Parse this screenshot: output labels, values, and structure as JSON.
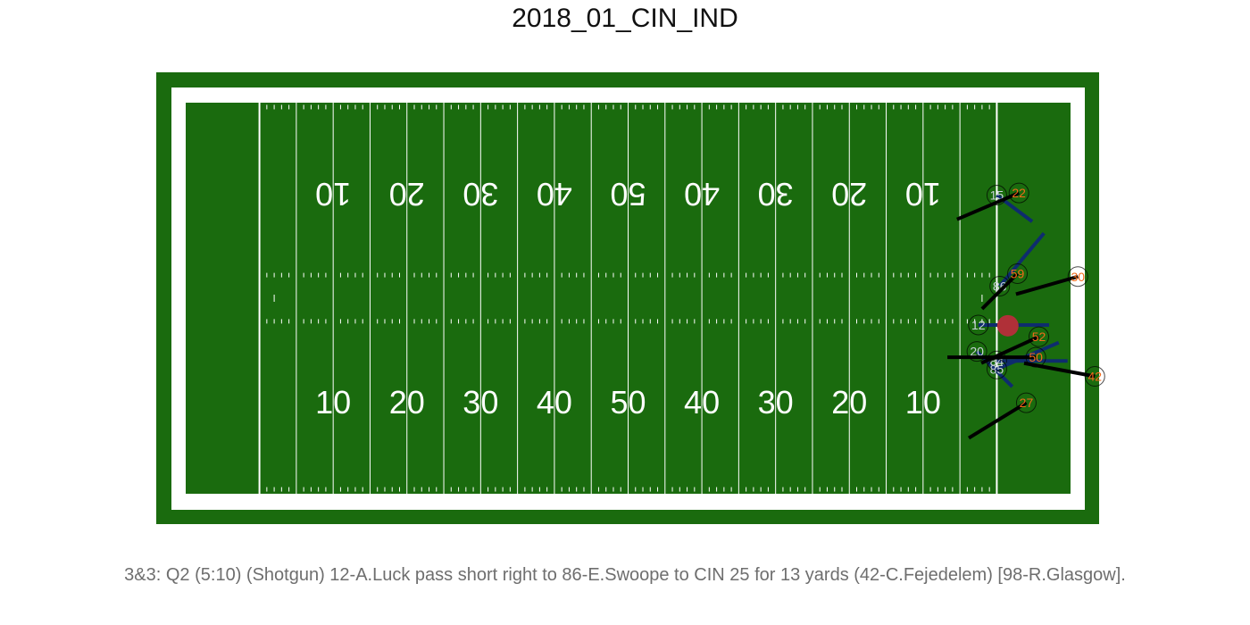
{
  "title": "2018_01_CIN_IND",
  "caption": "3&3: Q2 (5:10) (Shotgun) 12-A.Luck pass short right to 86-E.Swoope to CIN 25 for 13 yards (42-C.Fejedelem) [98-R.Glasgow].",
  "colors": {
    "field": "#1a6b0e",
    "lines": "#ffffff",
    "football": "#b03038",
    "offense_arrow": "#0e2c6e",
    "offense_text": "#c8d2d8",
    "defense_arrow": "#000000",
    "defense_text": "#f26a1a",
    "player_ring": "#000000"
  },
  "yard_numbers": {
    "top": [
      "10",
      "20",
      "30",
      "40",
      "50",
      "40",
      "30",
      "20",
      "10"
    ],
    "bottom": [
      "10",
      "20",
      "30",
      "40",
      "50",
      "40",
      "30",
      "20",
      "10"
    ]
  },
  "offense": {
    "team": "IND",
    "players": [
      {
        "jersey": "15",
        "yardline": 110.0,
        "y": 40.7,
        "dx": 0.8,
        "dy": -0.6
      },
      {
        "jersey": "86",
        "yardline": 110.4,
        "y": 28.3,
        "dx": 1.0,
        "dy": 1.2
      },
      {
        "jersey": "12",
        "yardline": 107.5,
        "y": 23.0,
        "dx": 1.6,
        "dy": 0.0
      },
      {
        "jersey": "20",
        "yardline": 107.3,
        "y": 19.4,
        "dx": 0.8,
        "dy": -0.8
      },
      {
        "jersey": "84",
        "yardline": 110.0,
        "y": 18.1,
        "dx": 1.6,
        "dy": 0.0
      },
      {
        "jersey": "85",
        "yardline": 110.0,
        "y": 17.0,
        "dx": 1.4,
        "dy": 0.6
      }
    ]
  },
  "defense": {
    "team": "CIN",
    "players": [
      {
        "jersey": "22",
        "yardline": 113.0,
        "y": 41.0,
        "dx": -1.4,
        "dy": -0.6
      },
      {
        "jersey": "59",
        "yardline": 112.8,
        "y": 30.0,
        "dx": -0.8,
        "dy": -0.8
      },
      {
        "jersey": "30",
        "yardline": 121.0,
        "y": 29.6,
        "dx": -1.4,
        "dy": -0.4
      },
      {
        "jersey": "52",
        "yardline": 115.7,
        "y": 21.4,
        "dx": -1.3,
        "dy": -0.6
      },
      {
        "jersey": "50",
        "yardline": 115.3,
        "y": 18.6,
        "dx": -2.0,
        "dy": 0.0
      },
      {
        "jersey": "42",
        "yardline": 123.3,
        "y": 16.0,
        "dx": -1.6,
        "dy": 0.3
      },
      {
        "jersey": "27",
        "yardline": 114.0,
        "y": 12.4,
        "dx": -1.3,
        "dy": -0.8
      }
    ]
  },
  "football": {
    "yardline": 111.5,
    "y": 22.9
  }
}
